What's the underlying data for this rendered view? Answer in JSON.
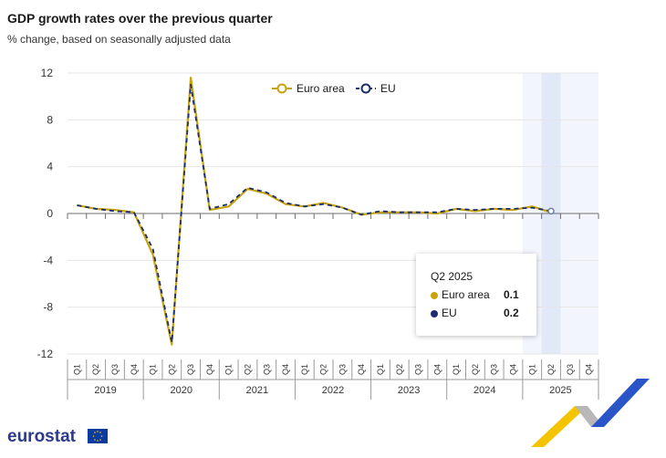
{
  "title": "GDP growth rates over the previous quarter",
  "subtitle": "% change, based on seasonally adjusted data",
  "tooltip": {
    "title": "Q2 2025",
    "rows": [
      {
        "name": "Euro area",
        "value": "0.1",
        "color": "#c9a30c"
      },
      {
        "name": "EU",
        "value": "0.2",
        "color": "#1a2e6e"
      }
    ]
  },
  "logo": "eurostat",
  "chart_data": {
    "type": "line",
    "x": [
      "2019Q1",
      "2019Q2",
      "2019Q3",
      "2019Q4",
      "2020Q1",
      "2020Q2",
      "2020Q3",
      "2020Q4",
      "2021Q1",
      "2021Q2",
      "2021Q3",
      "2021Q4",
      "2022Q1",
      "2022Q2",
      "2022Q3",
      "2022Q4",
      "2023Q1",
      "2023Q2",
      "2023Q3",
      "2023Q4",
      "2024Q1",
      "2024Q2",
      "2024Q3",
      "2024Q4",
      "2025Q1",
      "2025Q2",
      "2025Q3",
      "2025Q4"
    ],
    "quarter_labels": [
      "Q1",
      "Q2",
      "Q3",
      "Q4"
    ],
    "years": [
      "2019",
      "2020",
      "2021",
      "2022",
      "2023",
      "2024",
      "2025"
    ],
    "series": [
      {
        "name": "Euro area",
        "color": "#c9a30c",
        "values": [
          0.7,
          0.4,
          0.3,
          0.1,
          -3.5,
          -11.2,
          11.6,
          0.3,
          0.6,
          2.1,
          1.7,
          0.8,
          0.6,
          0.9,
          0.5,
          -0.1,
          0.1,
          0.1,
          0.1,
          0.0,
          0.4,
          0.2,
          0.4,
          0.3,
          0.6,
          0.1,
          null,
          null
        ]
      },
      {
        "name": "EU",
        "color": "#1a2e6e",
        "values": [
          0.7,
          0.4,
          0.2,
          0.1,
          -3.0,
          -11.0,
          11.0,
          0.4,
          0.8,
          2.2,
          1.8,
          0.9,
          0.6,
          0.8,
          0.5,
          -0.1,
          0.2,
          0.1,
          0.1,
          0.1,
          0.4,
          0.3,
          0.4,
          0.4,
          0.5,
          0.2,
          null,
          null
        ]
      }
    ],
    "yticks": [
      12,
      8,
      4,
      0,
      -4,
      -8,
      -12
    ],
    "ylim": [
      -12,
      12
    ],
    "legend_position": "top",
    "highlight": {
      "shaded_from": "2025Q1",
      "emphasis": "2025Q2"
    },
    "grid": true
  }
}
